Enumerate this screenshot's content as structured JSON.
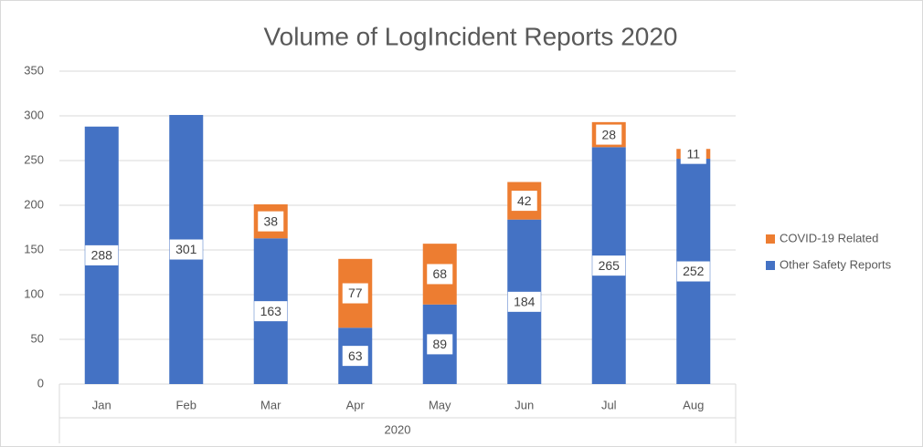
{
  "chart_data": {
    "type": "stacked_bar",
    "title": "Volume of LogIncident Reports 2020",
    "categories": [
      "Jan",
      "Feb",
      "Mar",
      "Apr",
      "May",
      "Jun",
      "Jul",
      "Aug"
    ],
    "category_group": "2020",
    "series": [
      {
        "name": "Other Safety Reports",
        "color": "#4472c4",
        "values": [
          288,
          301,
          163,
          63,
          89,
          184,
          265,
          252
        ]
      },
      {
        "name": "COVID-19 Related",
        "color": "#ed7d31",
        "values": [
          null,
          null,
          38,
          77,
          68,
          42,
          28,
          11
        ]
      }
    ],
    "ylim": [
      0,
      350
    ],
    "yticks": [
      0,
      50,
      100,
      150,
      200,
      250,
      300,
      350
    ],
    "grid": true,
    "legend": "right"
  }
}
